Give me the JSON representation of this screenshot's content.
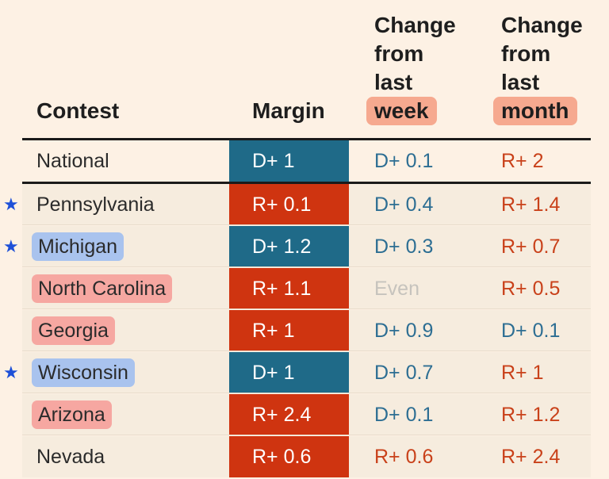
{
  "header": {
    "contest": "Contest",
    "margin": "Margin",
    "week_lines": [
      "Change",
      "from",
      "last"
    ],
    "week_highlight": "week",
    "month_lines": [
      "Change",
      "from",
      "last"
    ],
    "month_highlight": "month"
  },
  "colors": {
    "dem": "#1f6a88",
    "rep": "#cf3410",
    "dem_text": "#2d6e93",
    "rep_text": "#c9411a",
    "even_text": "#c6c3bd",
    "highlight_blue": "#a9c3ee",
    "highlight_red": "#f6a7a1",
    "star": "#1e50d8"
  },
  "star_icon": "★",
  "rows": [
    {
      "contest": "National",
      "margin": "D+ 1",
      "week": "D+ 0.1",
      "month": "R+ 2"
    },
    {
      "contest": "Pennsylvania",
      "margin": "R+ 0.1",
      "week": "D+ 0.4",
      "month": "R+ 1.4"
    },
    {
      "contest": "Michigan",
      "margin": "D+ 1.2",
      "week": "D+ 0.3",
      "month": "R+ 0.7"
    },
    {
      "contest": "North Carolina",
      "margin": "R+ 1.1",
      "week": "Even",
      "month": "R+ 0.5"
    },
    {
      "contest": "Georgia",
      "margin": "R+ 1",
      "week": "D+ 0.9",
      "month": "D+ 0.1"
    },
    {
      "contest": "Wisconsin",
      "margin": "D+ 1",
      "week": "D+ 0.7",
      "month": "R+ 1"
    },
    {
      "contest": "Arizona",
      "margin": "R+ 2.4",
      "week": "D+ 0.1",
      "month": "R+ 1.2"
    },
    {
      "contest": "Nevada",
      "margin": "R+ 0.6",
      "week": "R+ 0.6",
      "month": "R+ 2.4"
    }
  ]
}
